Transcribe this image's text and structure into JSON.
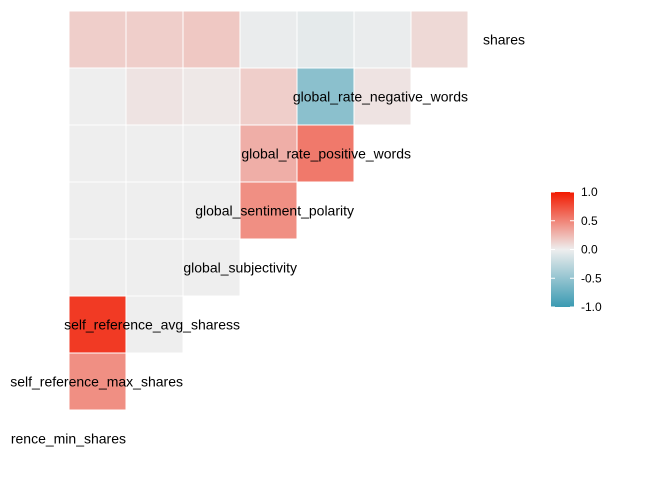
{
  "chart_data": {
    "type": "heatmap",
    "title": "",
    "variables": [
      "rence_min_shares",
      "self_reference_max_shares",
      "self_reference_avg_sharess",
      "global_subjectivity",
      "global_sentiment_polarity",
      "global_rate_positive_words",
      "global_rate_negative_words",
      "shares"
    ],
    "cells": [
      {
        "row": 1,
        "col": 0,
        "value": 0.45
      },
      {
        "row": 2,
        "col": 0,
        "value": 0.85
      },
      {
        "row": 2,
        "col": 1,
        "value": 0.0
      },
      {
        "row": 3,
        "col": 0,
        "value": 0.0
      },
      {
        "row": 3,
        "col": 1,
        "value": 0.0
      },
      {
        "row": 3,
        "col": 2,
        "value": 0.0
      },
      {
        "row": 4,
        "col": 0,
        "value": 0.0
      },
      {
        "row": 4,
        "col": 1,
        "value": 0.0
      },
      {
        "row": 4,
        "col": 2,
        "value": 0.0
      },
      {
        "row": 4,
        "col": 3,
        "value": 0.45
      },
      {
        "row": 5,
        "col": 0,
        "value": 0.0
      },
      {
        "row": 5,
        "col": 1,
        "value": 0.0
      },
      {
        "row": 5,
        "col": 2,
        "value": 0.0
      },
      {
        "row": 5,
        "col": 3,
        "value": 0.3
      },
      {
        "row": 5,
        "col": 4,
        "value": 0.55
      },
      {
        "row": 6,
        "col": 0,
        "value": 0.0
      },
      {
        "row": 6,
        "col": 1,
        "value": 0.05
      },
      {
        "row": 6,
        "col": 2,
        "value": 0.03
      },
      {
        "row": 6,
        "col": 3,
        "value": 0.15
      },
      {
        "row": 6,
        "col": 4,
        "value": -0.55
      },
      {
        "row": 6,
        "col": 5,
        "value": 0.05
      },
      {
        "row": 7,
        "col": 0,
        "value": 0.15
      },
      {
        "row": 7,
        "col": 1,
        "value": 0.15
      },
      {
        "row": 7,
        "col": 2,
        "value": 0.18
      },
      {
        "row": 7,
        "col": 3,
        "value": -0.02
      },
      {
        "row": 7,
        "col": 4,
        "value": -0.05
      },
      {
        "row": 7,
        "col": 5,
        "value": -0.02
      },
      {
        "row": 7,
        "col": 6,
        "value": 0.1
      }
    ],
    "legend": {
      "position": "right",
      "range": [
        -1,
        1
      ],
      "ticks": [
        "1.0",
        "0.5",
        "0.0",
        "-0.5",
        "-1.0"
      ],
      "tick_values": [
        1,
        0.5,
        0,
        -0.5,
        -1
      ]
    },
    "colors": {
      "low": "#3A9AB2",
      "mid": "#EEEEEE",
      "high": "#F21A00"
    }
  }
}
